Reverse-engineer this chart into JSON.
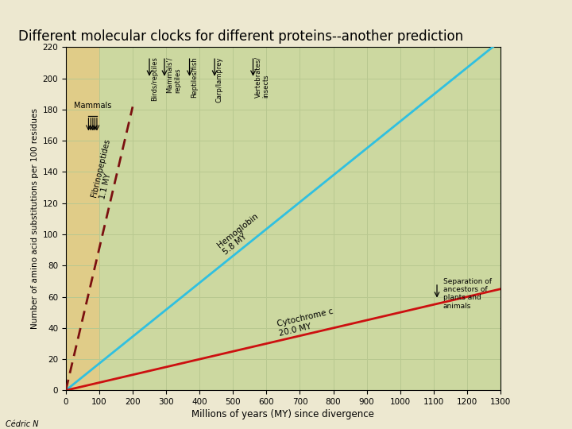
{
  "title": "Different molecular clocks for different proteins--another prediction",
  "xlabel": "Millions of years (MY) since divergence",
  "ylabel": "Number of amino acid substitutions per 100 residues",
  "xlim": [
    0,
    1300
  ],
  "ylim": [
    0,
    220
  ],
  "xticks": [
    0,
    100,
    200,
    300,
    400,
    500,
    600,
    700,
    800,
    900,
    1000,
    1100,
    1200,
    1300
  ],
  "yticks": [
    0,
    20,
    40,
    60,
    80,
    100,
    120,
    140,
    160,
    180,
    200,
    220
  ],
  "bg_outer": "#ede8d0",
  "bg_inner_left": "#e0cc88",
  "bg_inner_right": "#ccd8a0",
  "grid_color": "#b8c890",
  "fibrinopeptides_color": "#7B1010",
  "hemoglobin_color": "#30C0E0",
  "cytochrome_color": "#CC1010",
  "fibrinopeptides_rate": 1.1,
  "hemoglobin_rate": 5.8,
  "cytochrome_rate": 20.0,
  "bg_split_x": 100,
  "separation_x": 1110,
  "separation_y": 57,
  "author": "Cédric N",
  "divergence_items": [
    {
      "label": "Birds/reptiles",
      "x": 250
    },
    {
      "label": "Mammals'/\nreptiles",
      "x": 295
    },
    {
      "label": "Reptiles/fish",
      "x": 370
    },
    {
      "label": "Carp/lamprey",
      "x": 445
    },
    {
      "label": "Vertebrates/\ninsects",
      "x": 560
    }
  ]
}
